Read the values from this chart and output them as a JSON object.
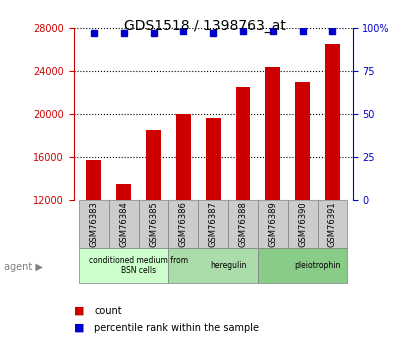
{
  "title": "GDS1518 / 1398763_at",
  "categories": [
    "GSM76383",
    "GSM76384",
    "GSM76385",
    "GSM76386",
    "GSM76387",
    "GSM76388",
    "GSM76389",
    "GSM76390",
    "GSM76391"
  ],
  "counts": [
    15700,
    13500,
    18500,
    20000,
    19600,
    22500,
    24300,
    23000,
    26500
  ],
  "percentiles": [
    97,
    97,
    97,
    98,
    97,
    98,
    98,
    98,
    98
  ],
  "ylim_left": [
    12000,
    28000
  ],
  "ylim_right": [
    0,
    100
  ],
  "yticks_left": [
    12000,
    16000,
    20000,
    24000,
    28000
  ],
  "yticks_right": [
    0,
    25,
    50,
    75,
    100
  ],
  "bar_color": "#cc0000",
  "dot_color": "#0000cc",
  "agent_groups": [
    {
      "label": "conditioned medium from\nBSN cells",
      "start": 0,
      "end": 3,
      "color": "#ccffcc"
    },
    {
      "label": "heregulin",
      "start": 3,
      "end": 6,
      "color": "#aaddaa"
    },
    {
      "label": "pleiotrophin",
      "start": 6,
      "end": 9,
      "color": "#88cc88"
    }
  ],
  "xlabel_area_color": "#dddddd",
  "background_color": "#ffffff",
  "plot_bg_color": "#ffffff",
  "grid_color": "#000000",
  "tick_label_color_left": "#cc0000",
  "tick_label_color_right": "#0000cc"
}
